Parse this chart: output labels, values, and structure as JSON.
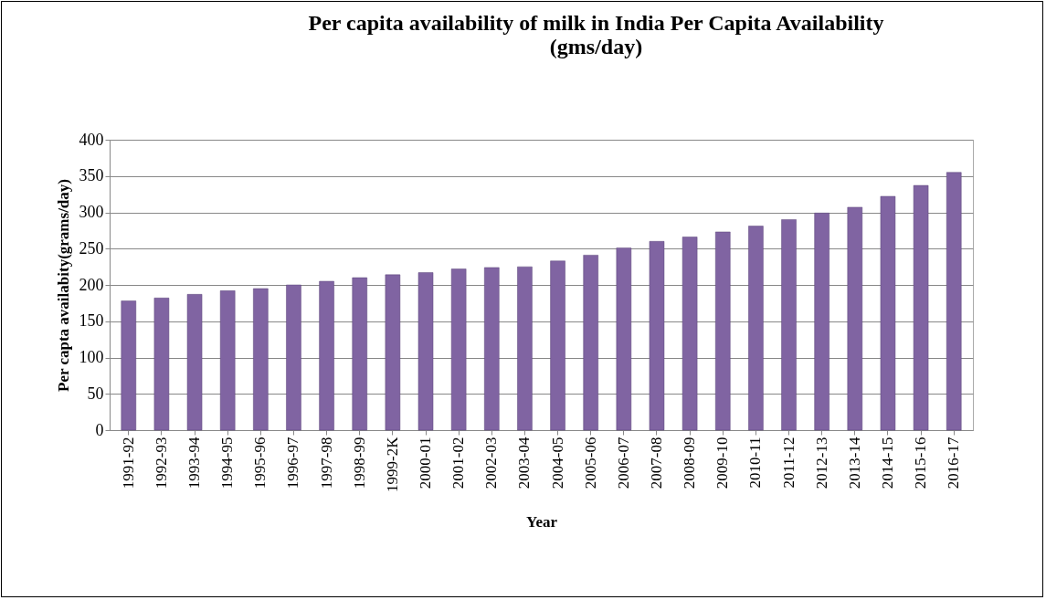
{
  "chart_data": {
    "type": "bar",
    "title": "Per capita availability of milk in India Per Capita Availability (gms/day)",
    "xlabel": "Year",
    "ylabel": "Per capta availabity(grams/day)",
    "categories": [
      "1991-92",
      "1992-93",
      "1993-94",
      "1994-95",
      "1995-96",
      "1996-97",
      "1997-98",
      "1998-99",
      "1999-2K",
      "2000-01",
      "2001-02",
      "2002-03",
      "2003-04",
      "2004-05",
      "2005-06",
      "2006-07",
      "2007-08",
      "2008-09",
      "2009-10",
      "2010-11",
      "2011-12",
      "2012-13",
      "2013-14",
      "2014-15",
      "2015-16",
      "2016-17"
    ],
    "values": [
      178,
      182,
      187,
      192,
      195,
      200,
      205,
      210,
      214,
      217,
      222,
      224,
      225,
      233,
      241,
      251,
      260,
      266,
      273,
      281,
      290,
      299,
      307,
      322,
      337,
      355
    ],
    "color": "#8064a2",
    "ylim": [
      0,
      400
    ],
    "yticks": [
      0,
      50,
      100,
      150,
      200,
      250,
      300,
      350,
      400
    ],
    "grid": "y"
  }
}
